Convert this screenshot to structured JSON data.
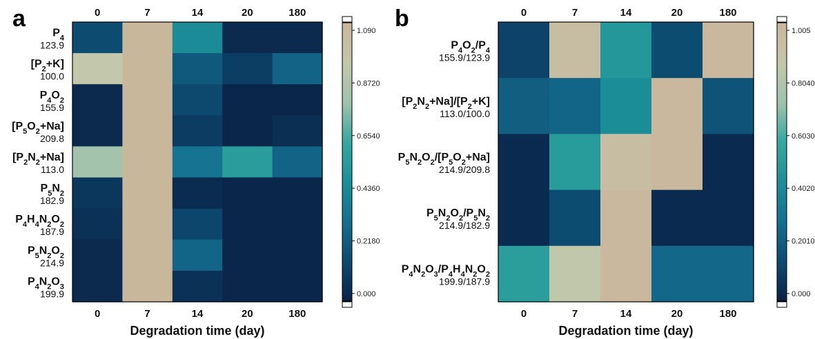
{
  "colorscale": [
    "#0a2246",
    "#0d4a70",
    "#156f90",
    "#1b8f98",
    "#35a79e",
    "#9ec2ad",
    "#c4c7ab",
    "#c9b79c"
  ],
  "chart_data": [
    {
      "type": "heatmap",
      "panel_label": "a",
      "xlabel": "Degradation time (day)",
      "x_categories": [
        "0",
        "7",
        "14",
        "20",
        "180"
      ],
      "rows": [
        {
          "main": [
            [
              "P",
              ""
            ],
            [
              "4",
              "sub"
            ]
          ],
          "sub": "123.9"
        },
        {
          "main": [
            [
              "[P",
              ""
            ],
            [
              "2",
              "sub"
            ],
            [
              "+K]",
              ""
            ]
          ],
          "sub": "100.0"
        },
        {
          "main": [
            [
              "P",
              ""
            ],
            [
              "4",
              "sub"
            ],
            [
              "O",
              ""
            ],
            [
              "2",
              "sub"
            ]
          ],
          "sub": "155.9"
        },
        {
          "main": [
            [
              "[P",
              ""
            ],
            [
              "5",
              "sub"
            ],
            [
              "O",
              ""
            ],
            [
              "2",
              "sub"
            ],
            [
              "+Na]",
              ""
            ]
          ],
          "sub": "209.8"
        },
        {
          "main": [
            [
              "[P",
              ""
            ],
            [
              "2",
              "sub"
            ],
            [
              "N",
              ""
            ],
            [
              "2",
              "sub"
            ],
            [
              "+Na]",
              ""
            ]
          ],
          "sub": "113.0"
        },
        {
          "main": [
            [
              "P",
              ""
            ],
            [
              "5",
              "sub"
            ],
            [
              "N",
              ""
            ],
            [
              "2",
              "sub"
            ]
          ],
          "sub": "182.9"
        },
        {
          "main": [
            [
              "P",
              ""
            ],
            [
              "4",
              "sub"
            ],
            [
              "H",
              ""
            ],
            [
              "4",
              "sub"
            ],
            [
              "N",
              ""
            ],
            [
              "2",
              "sub"
            ],
            [
              "O",
              ""
            ],
            [
              "2",
              "sub"
            ]
          ],
          "sub": "187.9"
        },
        {
          "main": [
            [
              "P",
              ""
            ],
            [
              "5",
              "sub"
            ],
            [
              "N",
              ""
            ],
            [
              "2",
              "sub"
            ],
            [
              "O",
              ""
            ],
            [
              "2",
              "sub"
            ]
          ],
          "sub": "214.9"
        },
        {
          "main": [
            [
              "P",
              ""
            ],
            [
              "4",
              "sub"
            ],
            [
              "N",
              ""
            ],
            [
              "2",
              "sub"
            ],
            [
              "O",
              ""
            ],
            [
              "3",
              "sub"
            ]
          ],
          "sub": "199.9"
        }
      ],
      "values": [
        [
          0.16,
          1.09,
          0.45,
          0.03,
          0.03
        ],
        [
          0.93,
          1.09,
          0.22,
          0.11,
          0.26
        ],
        [
          0.03,
          1.09,
          0.15,
          0.02,
          0.02
        ],
        [
          0.03,
          1.09,
          0.1,
          0.02,
          0.05
        ],
        [
          0.8,
          1.09,
          0.33,
          0.55,
          0.26
        ],
        [
          0.08,
          1.09,
          0.04,
          0.02,
          0.02
        ],
        [
          0.06,
          1.09,
          0.14,
          0.02,
          0.02
        ],
        [
          0.03,
          1.09,
          0.27,
          0.02,
          0.02
        ],
        [
          0.03,
          1.09,
          0.06,
          0.02,
          0.02
        ]
      ],
      "colorbar": {
        "range": [
          0.0,
          1.09
        ],
        "ticks": [
          "1.090",
          "0.8720",
          "0.6540",
          "0.4360",
          "0.2180",
          "0.000"
        ]
      }
    },
    {
      "type": "heatmap",
      "panel_label": "b",
      "xlabel": "Degradation time (day)",
      "x_categories": [
        "0",
        "7",
        "14",
        "20",
        "180"
      ],
      "rows": [
        {
          "main": [
            [
              "P",
              ""
            ],
            [
              "4",
              "sub"
            ],
            [
              "O",
              ""
            ],
            [
              "2",
              "sub"
            ],
            [
              "/P",
              ""
            ],
            [
              "4",
              "sub"
            ]
          ],
          "sub": "155.9/123.9"
        },
        {
          "main": [
            [
              "[P",
              ""
            ],
            [
              "2",
              "sub"
            ],
            [
              "N",
              ""
            ],
            [
              "2",
              "sub"
            ],
            [
              "+Na]/[P",
              ""
            ],
            [
              "2",
              "sub"
            ],
            [
              "+K]",
              ""
            ]
          ],
          "sub": "113.0/100.0"
        },
        {
          "main": [
            [
              "P",
              ""
            ],
            [
              "5",
              "sub"
            ],
            [
              "N",
              ""
            ],
            [
              "2",
              "sub"
            ],
            [
              "O",
              ""
            ],
            [
              "2",
              "sub"
            ],
            [
              "/[P",
              ""
            ],
            [
              "5",
              "sub"
            ],
            [
              "O",
              ""
            ],
            [
              "2",
              "sub"
            ],
            [
              "+Na]",
              ""
            ]
          ],
          "sub": "214.9/209.8"
        },
        {
          "main": [
            [
              "P",
              ""
            ],
            [
              "5",
              "sub"
            ],
            [
              "N",
              ""
            ],
            [
              "2",
              "sub"
            ],
            [
              "O",
              ""
            ],
            [
              "2",
              "sub"
            ],
            [
              "/P",
              ""
            ],
            [
              "5",
              "sub"
            ],
            [
              "N",
              ""
            ],
            [
              "2",
              "sub"
            ]
          ],
          "sub": "214.9/182.9"
        },
        {
          "main": [
            [
              "P",
              ""
            ],
            [
              "4",
              "sub"
            ],
            [
              "N",
              ""
            ],
            [
              "2",
              "sub"
            ],
            [
              "O",
              ""
            ],
            [
              "3",
              "sub"
            ],
            [
              "/P",
              ""
            ],
            [
              "4",
              "sub"
            ],
            [
              "H",
              ""
            ],
            [
              "4",
              "sub"
            ],
            [
              "N",
              ""
            ],
            [
              "2",
              "sub"
            ],
            [
              "O",
              ""
            ],
            [
              "2",
              "sub"
            ]
          ],
          "sub": "199.9/187.9"
        }
      ],
      "values": [
        [
          0.12,
          0.95,
          0.48,
          0.15,
          1.0
        ],
        [
          0.22,
          0.25,
          0.42,
          1.0,
          0.18
        ],
        [
          0.03,
          0.5,
          0.95,
          1.0,
          0.03
        ],
        [
          0.03,
          0.15,
          1.0,
          0.03,
          0.03
        ],
        [
          0.52,
          0.85,
          1.0,
          0.26,
          0.26
        ]
      ],
      "colorbar": {
        "range": [
          0.0,
          1.005
        ],
        "ticks": [
          "1.005",
          "0.8040",
          "0.6030",
          "0.4020",
          "0.2010",
          "0.000"
        ]
      }
    }
  ]
}
